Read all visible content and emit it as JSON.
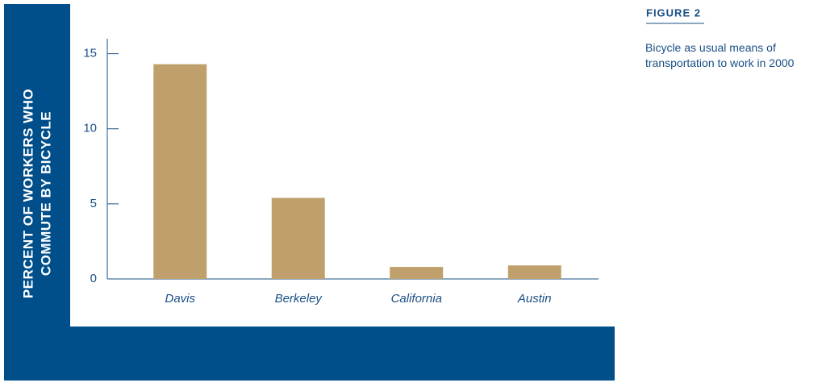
{
  "chart_data": {
    "type": "bar",
    "figure_label": "FIGURE 2",
    "caption": "Bicycle as usual means of transportation to work in 2000",
    "y_label_line1": "PERCENT OF WORKERS WHO",
    "y_label_line2": "COMMUTE BY BICYCLE",
    "categories": [
      "Davis",
      "Berkeley",
      "California",
      "Austin"
    ],
    "values": [
      14.3,
      5.4,
      0.8,
      0.9
    ],
    "color": "#bfa06c",
    "ylim": [
      0,
      16
    ],
    "yticks": [
      0,
      5,
      10,
      15
    ],
    "grid": false
  }
}
